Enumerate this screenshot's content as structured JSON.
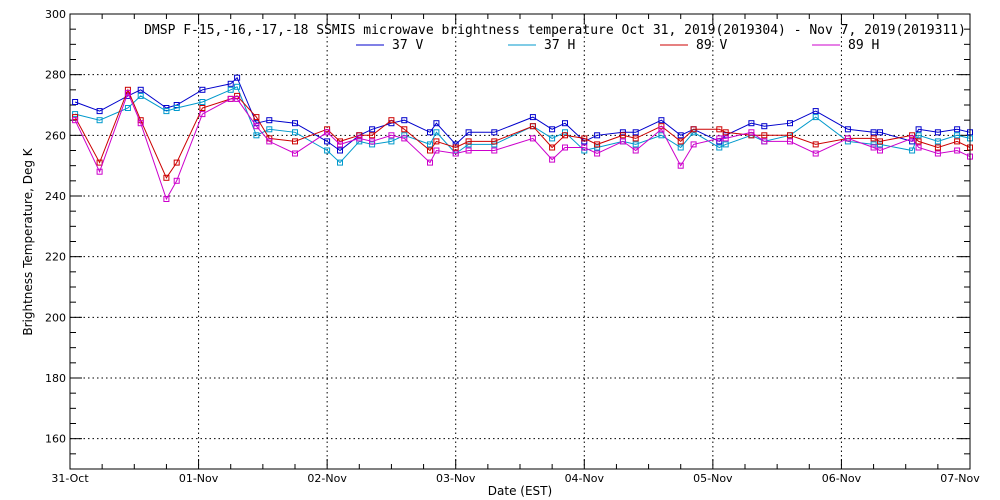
{
  "chart_data": {
    "type": "line",
    "title": "DMSP F-15,-16,-17,-18 SSMIS microwave brightness temperature Oct 31, 2019(2019304) - Nov  7, 2019(2019311)",
    "xlabel": "Date (EST)",
    "ylabel": "Brightness Temperature, Deg K",
    "xlim": [
      0,
      7
    ],
    "ylim": [
      150,
      300
    ],
    "yticks": [
      160,
      180,
      200,
      220,
      240,
      260,
      280,
      300
    ],
    "xticks": [
      {
        "value": 0,
        "label": "31-Oct"
      },
      {
        "value": 1,
        "label": "01-Nov"
      },
      {
        "value": 2,
        "label": "02-Nov"
      },
      {
        "value": 3,
        "label": "03-Nov"
      },
      {
        "value": 4,
        "label": "04-Nov"
      },
      {
        "value": 5,
        "label": "05-Nov"
      },
      {
        "value": 6,
        "label": "06-Nov"
      },
      {
        "value": 7,
        "label": "07-Nov"
      }
    ],
    "grid": true,
    "legend_position": "top",
    "series": [
      {
        "name": "37 V",
        "color": "#0000cc",
        "x": [
          0.04,
          0.23,
          0.45,
          0.55,
          0.75,
          0.83,
          1.03,
          1.25,
          1.3,
          1.45,
          1.55,
          1.75,
          2.0,
          2.1,
          2.25,
          2.35,
          2.5,
          2.6,
          2.8,
          2.85,
          3.0,
          3.1,
          3.3,
          3.6,
          3.75,
          3.85,
          4.0,
          4.1,
          4.3,
          4.4,
          4.6,
          4.75,
          4.85,
          5.05,
          5.1,
          5.3,
          5.4,
          5.6,
          5.8,
          6.05,
          6.25,
          6.3,
          6.55,
          6.6,
          6.75,
          6.9,
          7.0
        ],
        "values": [
          271,
          268,
          273,
          275,
          269,
          270,
          275,
          277,
          279,
          264,
          265,
          264,
          258,
          255,
          260,
          262,
          264,
          265,
          261,
          264,
          257,
          261,
          261,
          266,
          262,
          264,
          258,
          260,
          261,
          261,
          265,
          260,
          262,
          258,
          260,
          264,
          263,
          264,
          268,
          262,
          261,
          261,
          258,
          262,
          261,
          262,
          261
        ]
      },
      {
        "name": "37 H",
        "color": "#0099cc",
        "x": [
          0.04,
          0.23,
          0.45,
          0.55,
          0.75,
          0.83,
          1.03,
          1.25,
          1.3,
          1.45,
          1.55,
          1.75,
          2.0,
          2.1,
          2.25,
          2.35,
          2.5,
          2.6,
          2.8,
          2.85,
          3.0,
          3.1,
          3.3,
          3.6,
          3.75,
          3.85,
          4.0,
          4.1,
          4.3,
          4.4,
          4.6,
          4.75,
          4.85,
          5.05,
          5.1,
          5.3,
          5.4,
          5.6,
          5.8,
          6.05,
          6.25,
          6.3,
          6.55,
          6.6,
          6.75,
          6.9,
          7.0
        ],
        "values": [
          267,
          265,
          269,
          273,
          268,
          269,
          271,
          275,
          276,
          260,
          262,
          261,
          255,
          251,
          258,
          257,
          258,
          260,
          257,
          261,
          254,
          257,
          257,
          263,
          259,
          261,
          255,
          256,
          258,
          257,
          260,
          256,
          261,
          256,
          257,
          260,
          258,
          260,
          266,
          258,
          257,
          257,
          255,
          260,
          258,
          260,
          259
        ]
      },
      {
        "name": "89 V",
        "color": "#cc0000",
        "x": [
          0.04,
          0.23,
          0.45,
          0.55,
          0.75,
          0.83,
          1.03,
          1.25,
          1.3,
          1.45,
          1.55,
          1.75,
          2.0,
          2.1,
          2.25,
          2.35,
          2.5,
          2.6,
          2.8,
          2.85,
          3.0,
          3.1,
          3.3,
          3.6,
          3.75,
          3.85,
          4.0,
          4.1,
          4.3,
          4.4,
          4.6,
          4.75,
          4.85,
          5.05,
          5.1,
          5.3,
          5.4,
          5.6,
          5.8,
          6.05,
          6.25,
          6.3,
          6.55,
          6.6,
          6.75,
          6.9,
          7.0
        ],
        "values": [
          266,
          251,
          275,
          265,
          246,
          251,
          269,
          272,
          273,
          266,
          259,
          258,
          262,
          258,
          260,
          260,
          265,
          262,
          255,
          258,
          256,
          258,
          258,
          263,
          256,
          260,
          259,
          257,
          260,
          259,
          263,
          258,
          262,
          262,
          261,
          260,
          260,
          260,
          257,
          259,
          259,
          258,
          260,
          258,
          256,
          258,
          256
        ]
      },
      {
        "name": "89 H",
        "color": "#cc00cc",
        "x": [
          0.04,
          0.23,
          0.45,
          0.55,
          0.75,
          0.83,
          1.03,
          1.25,
          1.3,
          1.45,
          1.55,
          1.75,
          2.0,
          2.1,
          2.25,
          2.35,
          2.5,
          2.6,
          2.8,
          2.85,
          3.0,
          3.1,
          3.3,
          3.6,
          3.75,
          3.85,
          4.0,
          4.1,
          4.3,
          4.4,
          4.6,
          4.75,
          4.85,
          5.05,
          5.1,
          5.3,
          5.4,
          5.6,
          5.8,
          6.05,
          6.25,
          6.3,
          6.55,
          6.6,
          6.75,
          6.9,
          7.0
        ],
        "values": [
          265,
          248,
          274,
          264,
          239,
          245,
          267,
          272,
          272,
          263,
          258,
          254,
          261,
          257,
          259,
          258,
          260,
          259,
          251,
          255,
          254,
          255,
          255,
          259,
          252,
          256,
          256,
          254,
          258,
          255,
          262,
          250,
          257,
          259,
          259,
          261,
          258,
          258,
          254,
          259,
          256,
          255,
          259,
          256,
          254,
          255,
          253
        ]
      }
    ]
  }
}
